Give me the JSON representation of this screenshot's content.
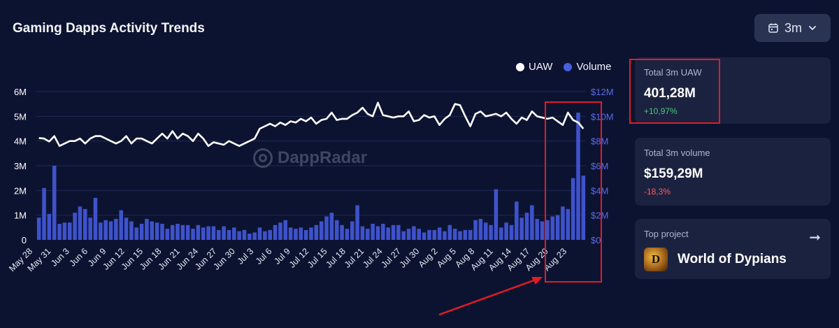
{
  "header": {
    "title": "Gaming Dapps Activity Trends",
    "period_label": "3m",
    "period_icon": "calendar-icon"
  },
  "legend": [
    {
      "name": "UAW",
      "color": "#ffffff"
    },
    {
      "name": "Volume",
      "color": "#4a5fdc"
    }
  ],
  "watermark": "DappRadar",
  "colors": {
    "background": "#0c1331",
    "bar": "#3f52cc",
    "line": "#ffffff",
    "left_axis_text": "#ffffff",
    "right_axis_text": "#5b6be8",
    "grid": "#1f2854",
    "annotation": "#e31b23"
  },
  "chart_data": {
    "type": "bar",
    "x_tick_labels": [
      "May 28",
      "May 31",
      "Jun 3",
      "Jun 6",
      "Jun 9",
      "Jun 12",
      "Jun 15",
      "Jun 18",
      "Jun 21",
      "Jun 24",
      "Jun 27",
      "Jun 30",
      "Jul 3",
      "Jul 6",
      "Jul 9",
      "Jul 12",
      "Jul 15",
      "Jul 18",
      "Jul 21",
      "Jul 24",
      "Jul 27",
      "Jul 30",
      "Aug 2",
      "Aug 5",
      "Aug 8",
      "Aug 11",
      "Aug 14",
      "Aug 17",
      "Aug 20",
      "Aug 23"
    ],
    "left_axis": {
      "label": "UAW",
      "ticks": [
        "0",
        "1M",
        "2M",
        "3M",
        "4M",
        "5M",
        "6M"
      ],
      "ylim": [
        0,
        6000000
      ]
    },
    "right_axis": {
      "label": "Volume",
      "ticks": [
        "$0",
        "$2M",
        "$4M",
        "$6M",
        "$8M",
        "$10M",
        "$12M"
      ],
      "ylim": [
        0,
        12000000
      ]
    },
    "grid": true,
    "legend_position": "top-right",
    "series": [
      {
        "name": "Volume",
        "type": "bar",
        "axis": "right",
        "values": [
          1.8,
          4.2,
          2.1,
          6.0,
          1.3,
          1.4,
          1.4,
          2.2,
          2.7,
          2.5,
          1.8,
          3.4,
          1.4,
          1.6,
          1.5,
          1.7,
          2.4,
          1.8,
          1.5,
          1.0,
          1.3,
          1.7,
          1.5,
          1.4,
          1.3,
          0.9,
          1.2,
          1.3,
          1.2,
          1.2,
          0.9,
          1.2,
          1.0,
          1.1,
          1.1,
          0.8,
          1.1,
          0.8,
          1.0,
          0.7,
          0.8,
          0.5,
          0.6,
          1.0,
          0.7,
          0.8,
          1.2,
          1.4,
          1.6,
          1.0,
          0.9,
          1.0,
          0.8,
          1.0,
          1.2,
          1.5,
          1.9,
          2.2,
          1.6,
          1.2,
          0.9,
          1.5,
          2.8,
          1.1,
          0.9,
          1.3,
          1.1,
          1.3,
          1.0,
          1.2,
          1.2,
          0.7,
          0.9,
          1.1,
          0.9,
          0.6,
          0.8,
          0.8,
          1.0,
          0.7,
          1.2,
          0.9,
          0.7,
          0.8,
          0.8,
          1.6,
          1.7,
          1.4,
          1.2,
          4.1,
          1.0,
          1.4,
          1.2,
          3.1,
          1.8,
          2.2,
          2.8,
          1.7,
          1.5,
          1.6,
          1.9,
          2.0,
          2.7,
          2.5,
          5.0,
          10.3,
          5.2
        ],
        "unit": "$M"
      },
      {
        "name": "UAW",
        "type": "line",
        "axis": "left",
        "values": [
          4.12,
          4.1,
          3.98,
          4.2,
          3.8,
          3.9,
          4.0,
          4.0,
          4.1,
          3.9,
          4.1,
          4.2,
          4.2,
          4.1,
          4.0,
          3.9,
          4.0,
          4.2,
          3.9,
          4.1,
          4.1,
          4.0,
          3.9,
          4.1,
          4.3,
          4.1,
          4.4,
          4.1,
          4.3,
          4.2,
          4.0,
          4.3,
          4.1,
          3.8,
          3.95,
          3.9,
          3.85,
          4.0,
          3.9,
          3.8,
          3.9,
          4.0,
          4.1,
          4.5,
          4.6,
          4.7,
          4.6,
          4.75,
          4.65,
          4.8,
          4.75,
          4.9,
          4.8,
          4.95,
          4.7,
          4.85,
          4.9,
          5.15,
          4.85,
          4.9,
          4.9,
          5.05,
          5.15,
          5.35,
          5.1,
          5.0,
          5.55,
          5.05,
          5.0,
          4.95,
          5.0,
          5.0,
          5.2,
          4.8,
          4.85,
          5.05,
          4.95,
          5.0,
          4.65,
          4.9,
          5.05,
          5.5,
          5.45,
          5.0,
          4.6,
          5.1,
          5.2,
          5.0,
          5.05,
          5.1,
          5.0,
          5.15,
          4.9,
          4.7,
          4.95,
          4.85,
          5.2,
          5.0,
          4.95,
          4.9,
          4.95,
          4.8,
          4.65,
          5.15,
          4.85,
          4.75,
          4.5
        ],
        "unit": "M"
      }
    ]
  },
  "cards": {
    "uaw": {
      "label": "Total 3m UAW",
      "value": "401,28M",
      "change": "+10,97%"
    },
    "volume": {
      "label": "Total 3m volume",
      "value": "$159,29M",
      "change": "-18,3%"
    },
    "top_project": {
      "label": "Top project",
      "name": "World of Dypians",
      "logo_letter": "D",
      "arrow_icon": "arrow-right-icon"
    }
  }
}
